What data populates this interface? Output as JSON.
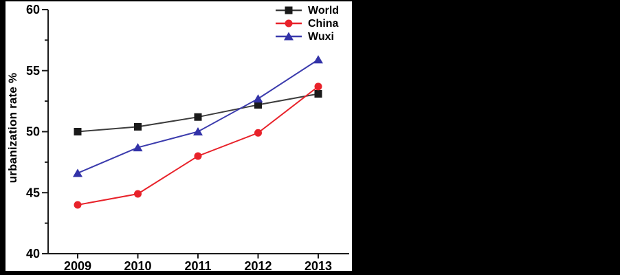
{
  "figure": {
    "background": "#000000",
    "panel_background": "#ffffff"
  },
  "chart_data": {
    "type": "line",
    "title": "",
    "xlabel": "",
    "ylabel": "urbanization rate %",
    "categories": [
      "2009",
      "2010",
      "2011",
      "2012",
      "2013"
    ],
    "ylim": [
      40,
      60
    ],
    "yticks_major": [
      40,
      45,
      50,
      55,
      60
    ],
    "yticks_minor": [
      42.5,
      47.5,
      52.5,
      57.5
    ],
    "grid": false,
    "legend_position": "top-right-inside",
    "axis_color": "#1a1a1a",
    "text_color": "#000000",
    "series": [
      {
        "name": "World",
        "marker": "square",
        "line_color": "#3d3d3d",
        "marker_color": "#1a1a1a",
        "values": [
          50.0,
          50.4,
          51.2,
          52.2,
          53.1
        ]
      },
      {
        "name": "China",
        "marker": "circle",
        "line_color": "#e8222a",
        "marker_color": "#e8222a",
        "values": [
          44.0,
          44.9,
          48.0,
          49.9,
          53.7
        ]
      },
      {
        "name": "Wuxi",
        "marker": "triangle",
        "line_color": "#3b3bad",
        "marker_color": "#3232a8",
        "values": [
          46.6,
          48.7,
          50.0,
          52.7,
          55.9
        ]
      }
    ]
  }
}
